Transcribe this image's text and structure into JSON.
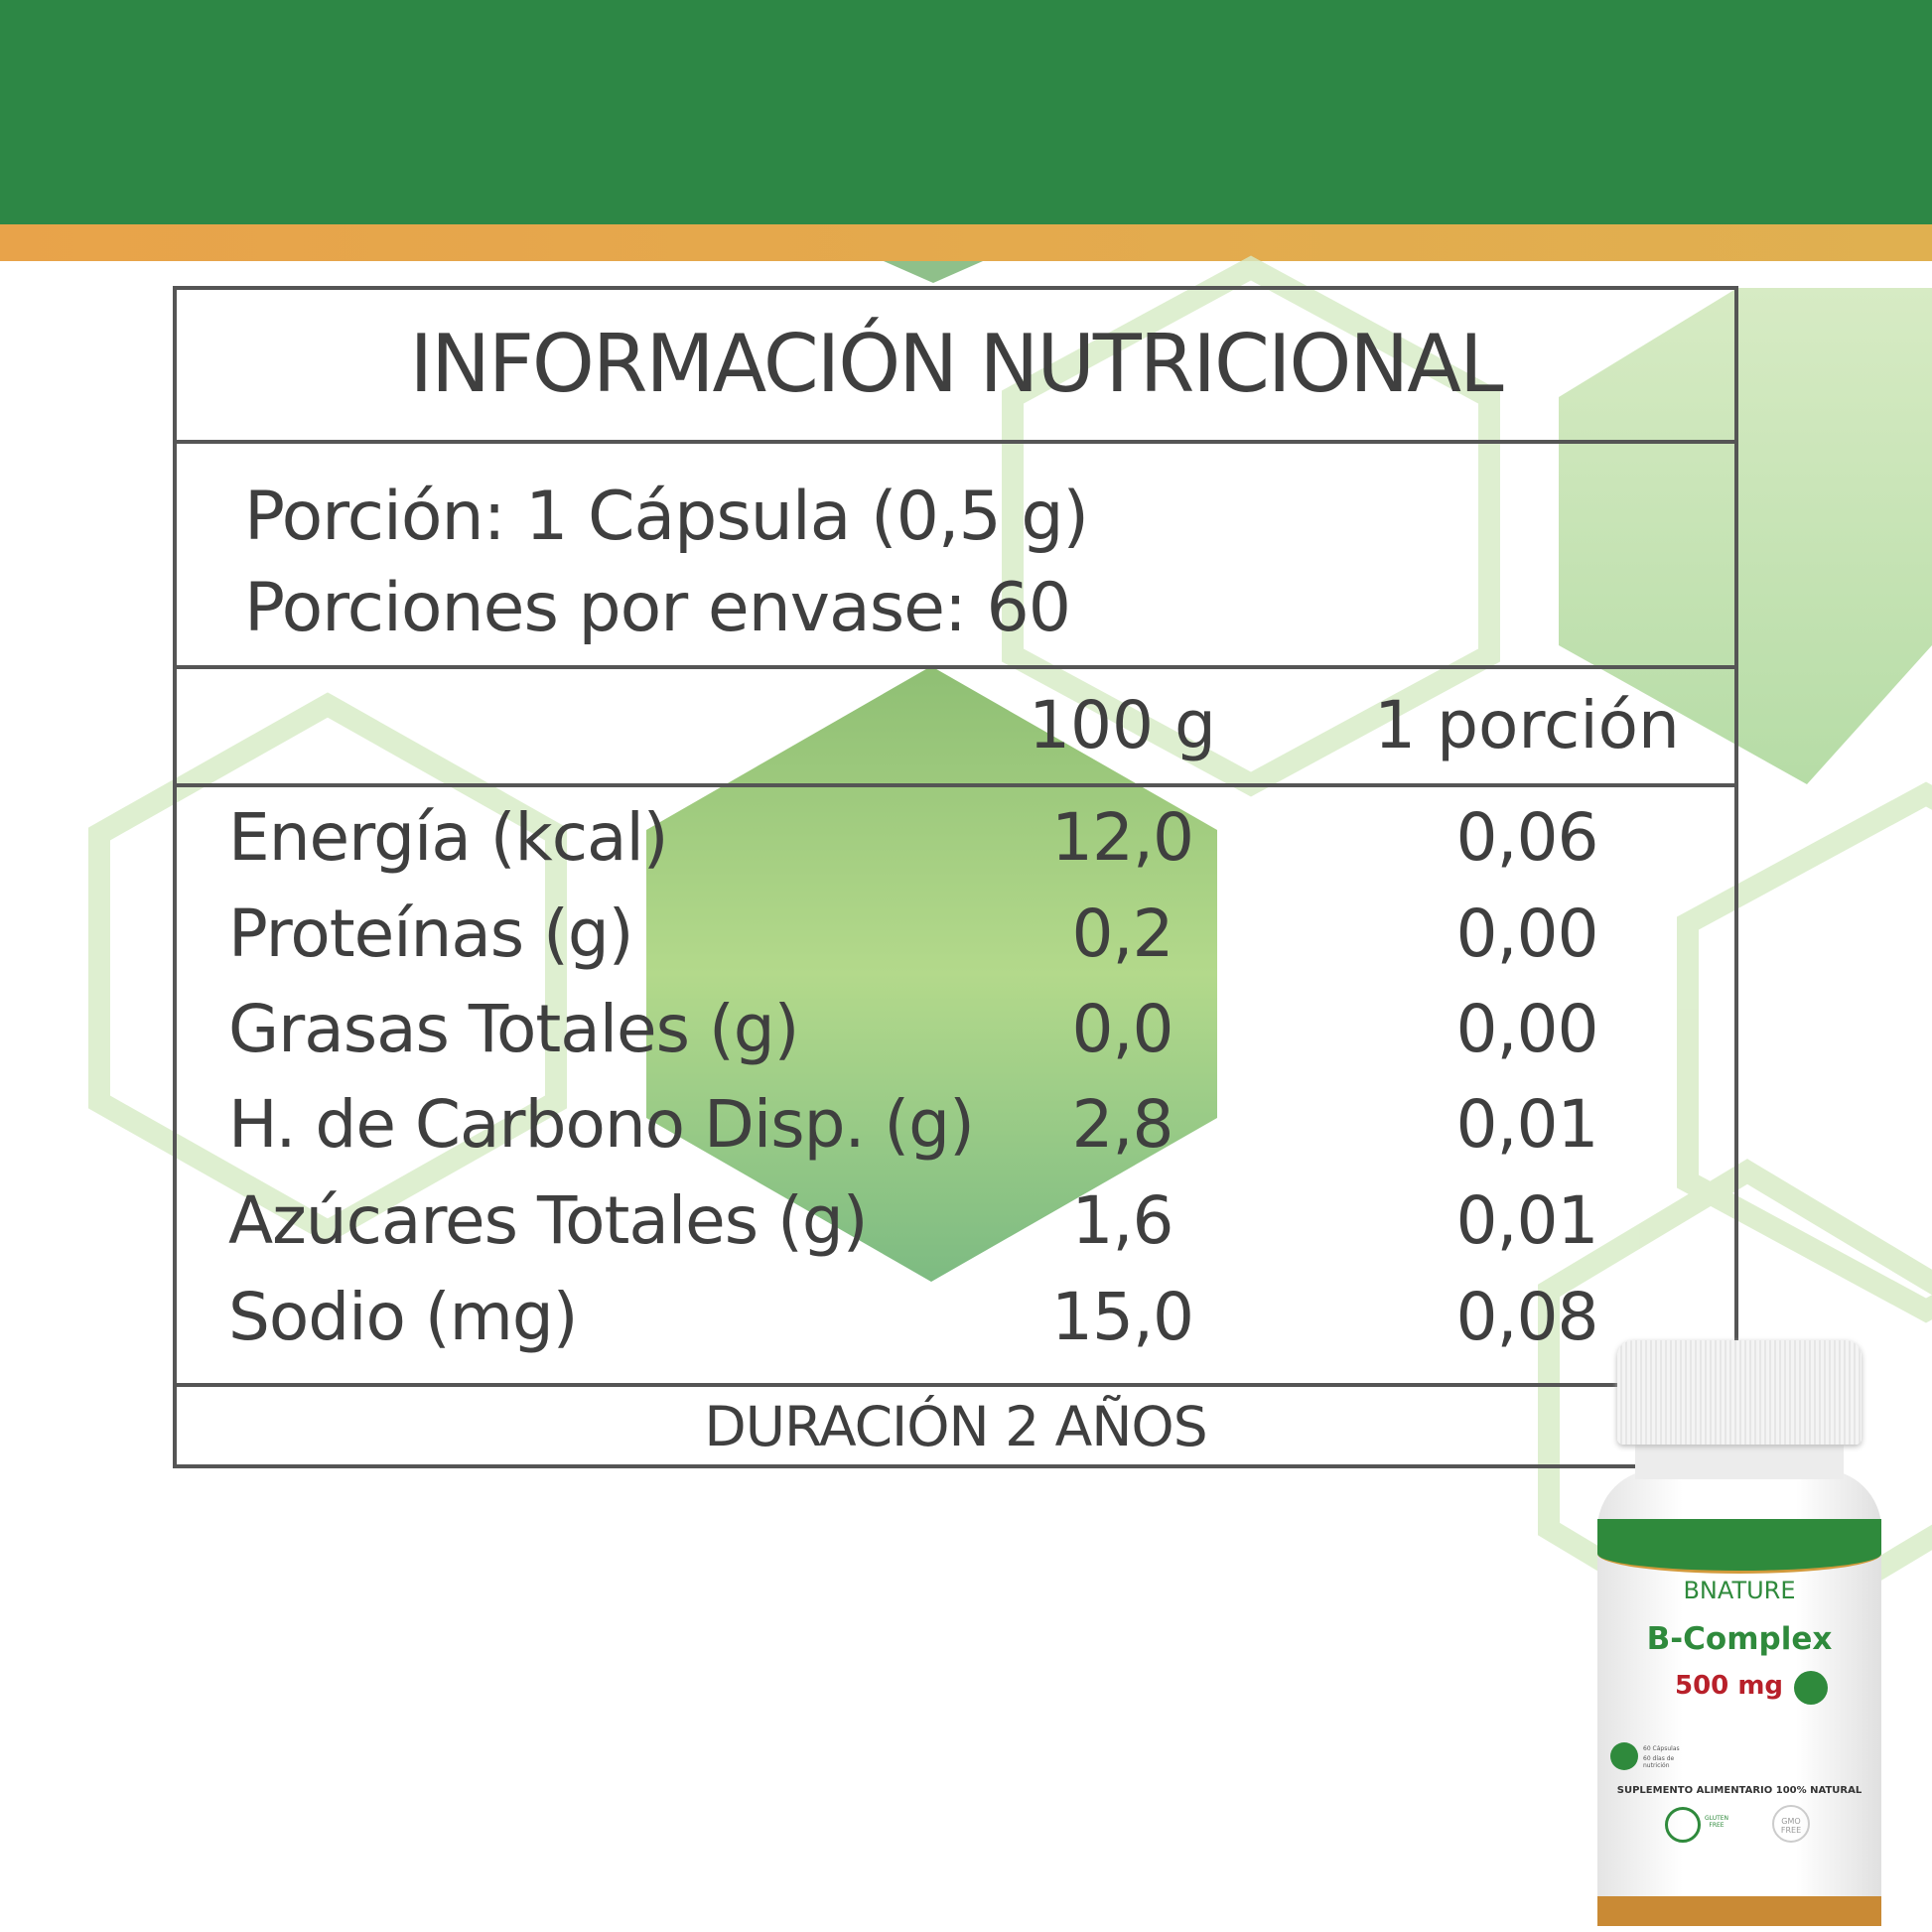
{
  "colors": {
    "header_band": "#2d8745",
    "accent_stripe": "#e0a84a",
    "hexagon": "#b8d99a",
    "text": "#3f3f3f"
  },
  "table": {
    "title": "INFORMACIÓN NUTRICIONAL",
    "serving": "Porción: 1 Cápsula (0,5 g)",
    "servings_per_container": "Porciones por envase: 60",
    "columns": [
      "100 g",
      "1 porción"
    ],
    "rows": [
      {
        "label": "Energía (kcal)",
        "per100": "12,0",
        "perServing": "0,06"
      },
      {
        "label": "Proteínas (g)",
        "per100": "0,2",
        "perServing": "0,00"
      },
      {
        "label": "Grasas Totales (g)",
        "per100": "0,0",
        "perServing": "0,00"
      },
      {
        "label": "H. de Carbono Disp. (g)",
        "per100": "2,8",
        "perServing": "0,01"
      },
      {
        "label": "Azúcares Totales (g)",
        "per100": "1,6",
        "perServing": "0,01"
      },
      {
        "label": "Sodio (mg)",
        "per100": "15,0",
        "perServing": "0,08"
      }
    ],
    "footer": "DURACIÓN 2 AÑOS"
  },
  "product": {
    "brand": "BNATURE",
    "name": "B-Complex",
    "dose": "500 mg",
    "capsules": "60 Cápsulas",
    "days": "60 días de nutrición",
    "claim": "SUPLEMENTO ALIMENTARIO 100% NATURAL",
    "gluten": "GLUTEN FREE",
    "gmo": "GMO FREE"
  }
}
